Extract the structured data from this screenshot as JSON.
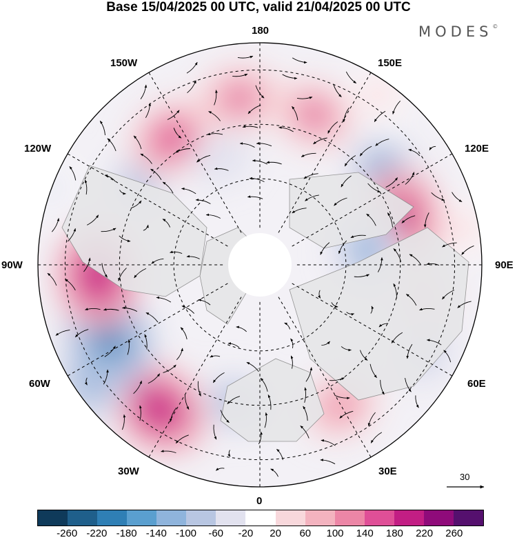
{
  "title": "Base 15/04/2025 00 UTC, valid 21/04/2025 00 UTC",
  "brand": {
    "text": "MODES",
    "mark": "©"
  },
  "longitude_labels": {
    "lon_180": "180",
    "lon_150w": "150W",
    "lon_150e": "150E",
    "lon_120w": "120W",
    "lon_120e": "120E",
    "lon_90w": "90W",
    "lon_90e": "90E",
    "lon_60w": "60W",
    "lon_60e": "60E",
    "lon_30w": "30W",
    "lon_30e": "30E",
    "lon_0": "0"
  },
  "reference_vector": {
    "label": "30"
  },
  "colorbar": {
    "colors": [
      "#0f3a5a",
      "#1f5f8b",
      "#2f7fb5",
      "#5a9fcf",
      "#8fb4dc",
      "#b8c6e2",
      "#e2e2ef",
      "#ffffff",
      "#f8d8dc",
      "#f3b3bf",
      "#ec86a6",
      "#df4f97",
      "#c21e84",
      "#8f0b7a",
      "#55106e"
    ],
    "ticks": [
      "-260",
      "-220",
      "-180",
      "-140",
      "-100",
      "-60",
      "-20",
      "20",
      "60",
      "100",
      "140",
      "180",
      "220",
      "260"
    ]
  },
  "anomaly_centers": [
    {
      "lon": 160,
      "lat": 43,
      "value": 140,
      "name": "pos-180"
    },
    {
      "lon": 145,
      "lat": 25,
      "value": 40,
      "name": "pos-150e"
    },
    {
      "lon": 125,
      "lat": 45,
      "value": -150,
      "name": "neg-135e"
    },
    {
      "lon": 109,
      "lat": 46,
      "value": 180,
      "name": "pos-110e"
    },
    {
      "lon": 98,
      "lat": 62,
      "value": -140,
      "name": "neg-95e"
    },
    {
      "lon": 79,
      "lat": 40,
      "value": 60,
      "name": "pos-80e"
    },
    {
      "lon": 62,
      "lat": 33,
      "value": -80,
      "name": "neg-60e"
    },
    {
      "lon": 30,
      "lat": 42,
      "value": 120,
      "name": "pos-30e"
    },
    {
      "lon": -10,
      "lat": 50,
      "value": -90,
      "name": "neg-10w"
    },
    {
      "lon": -35,
      "lat": 37,
      "value": 200,
      "name": "pos-35w"
    },
    {
      "lon": -55,
      "lat": 25,
      "value": -130,
      "name": "neg-55w"
    },
    {
      "lon": -64,
      "lat": 40,
      "value": -200,
      "name": "neg-65w"
    },
    {
      "lon": -86,
      "lat": 42,
      "value": 210,
      "name": "pos-85w"
    },
    {
      "lon": -125,
      "lat": 48,
      "value": -90,
      "name": "neg-125w"
    },
    {
      "lon": -145,
      "lat": 45,
      "value": 160,
      "name": "pos-145w"
    },
    {
      "lon": -160,
      "lat": 60,
      "value": -60,
      "name": "neg-160w"
    },
    {
      "lon": -173,
      "lat": 40,
      "value": 140,
      "name": "pos-175w"
    },
    {
      "lon": -110,
      "lat": 20,
      "value": -40,
      "name": "neg-110w"
    },
    {
      "lon": 100,
      "lat": 25,
      "value": 40,
      "name": "pos-100e"
    }
  ]
}
